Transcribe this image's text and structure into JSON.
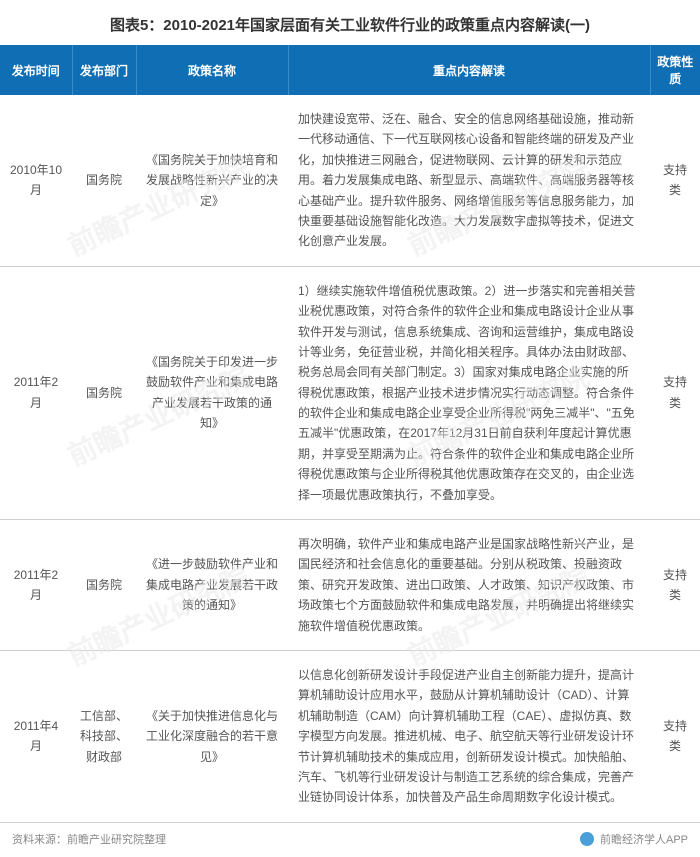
{
  "title": "图表5：2010-2021年国家层面有关工业软件行业的政策重点内容解读(一)",
  "columns": {
    "time": "发布时间",
    "dept": "发布部门",
    "name": "政策名称",
    "content": "重点内容解读",
    "type": "政策性质"
  },
  "rows": [
    {
      "time": "2010年10月",
      "dept": "国务院",
      "name": "《国务院关于加快培育和发展战略性新兴产业的决定》",
      "content": "加快建设宽带、泛在、融合、安全的信息网络基础设施，推动新一代移动通信、下一代互联网核心设备和智能终端的研发及产业化，加快推进三网融合，促进物联网、云计算的研发和示范应用。着力发展集成电路、新型显示、高端软件、高端服务器等核心基础产业。提升软件服务、网络增值服务等信息服务能力，加快重要基础设施智能化改造。大力发展数字虚拟等技术，促进文化创意产业发展。",
      "type": "支持类"
    },
    {
      "time": "2011年2月",
      "dept": "国务院",
      "name": "《国务院关于印发进一步鼓励软件产业和集成电路产业发展若干政策的通知》",
      "content": "1）继续实施软件增值税优惠政策。2）进一步落实和完善相关营业税优惠政策，对符合条件的软件企业和集成电路设计企业从事软件开发与测试，信息系统集成、咨询和运营维护，集成电路设计等业务，免征营业税，并简化相关程序。具体办法由财政部、税务总局会同有关部门制定。3）国家对集成电路企业实施的所得税优惠政策，根据产业技术进步情况实行动态调整。符合条件的软件企业和集成电路企业享受企业所得税\"两免三减半\"、\"五免五减半\"优惠政策，在2017年12月31日前自获利年度起计算优惠期，并享受至期满为止。符合条件的软件企业和集成电路企业所得税优惠政策与企业所得税其他优惠政策存在交叉的，由企业选择一项最优惠政策执行，不叠加享受。",
      "type": "支持类"
    },
    {
      "time": "2011年2月",
      "dept": "国务院",
      "name": "《进一步鼓励软件产业和集成电路产业发展若干政策的通知》",
      "content": "再次明确，软件产业和集成电路产业是国家战略性新兴产业，是国民经济和社会信息化的重要基础。分别从税政策、投融资政策、研究开发政策、进出口政策、人才政策、知识产权政策、市场政策七个方面鼓励软件和集成电路发展，并明确提出将继续实施软件增值税优惠政策。",
      "type": "支持类"
    },
    {
      "time": "2011年4月",
      "dept": "工信部、科技部、财政部",
      "name": "《关于加快推进信息化与工业化深度融合的若干意见》",
      "content": "以信息化创新研发设计手段促进产业自主创新能力提升，提高计算机辅助设计应用水平，鼓励从计算机辅助设计（CAD）、计算机辅助制造（CAM）向计算机辅助工程（CAE）、虚拟仿真、数字模型方向发展。推进机械、电子、航空航天等行业研发设计环节计算机辅助技术的集成应用，创新研发设计模式。加快船舶、汽车、飞机等行业研发设计与制造工艺系统的综合集成，完善产业链协同设计体系，加快普及产品生命周期数字化设计模式。",
      "type": "支持类"
    }
  ],
  "footer": {
    "source": "资料来源：前瞻产业研究院整理",
    "brand": "前瞻经济学人APP"
  },
  "watermark": "前瞻产业研究院",
  "styling": {
    "header_bg": "#0f6eb4",
    "header_text": "#ffffff",
    "body_text": "#555555",
    "border_color": "#d0d0d0",
    "footer_text": "#888888"
  }
}
